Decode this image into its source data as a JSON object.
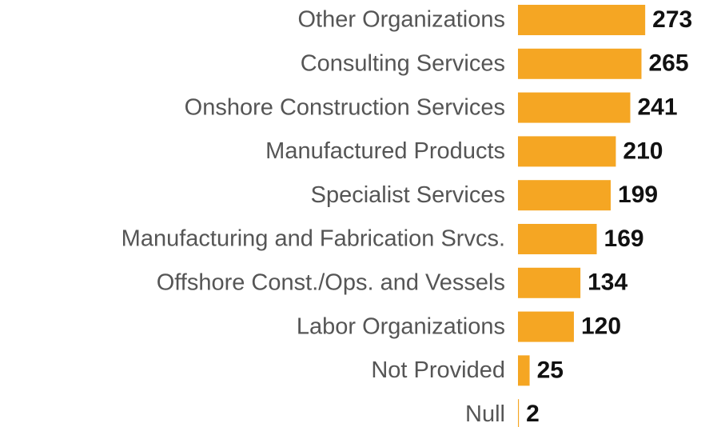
{
  "chart_data": {
    "type": "bar",
    "orientation": "horizontal",
    "categories": [
      "Other Organizations",
      "Consulting Services",
      "Onshore Construction Services",
      "Manufactured Products",
      "Specialist Services",
      "Manufacturing and Fabrication Srvcs.",
      "Offshore Const./Ops. and Vessels",
      "Labor Organizations",
      "Not Provided",
      "Null"
    ],
    "values": [
      273,
      265,
      241,
      210,
      199,
      169,
      134,
      120,
      25,
      2
    ],
    "color": "#f5a623"
  }
}
